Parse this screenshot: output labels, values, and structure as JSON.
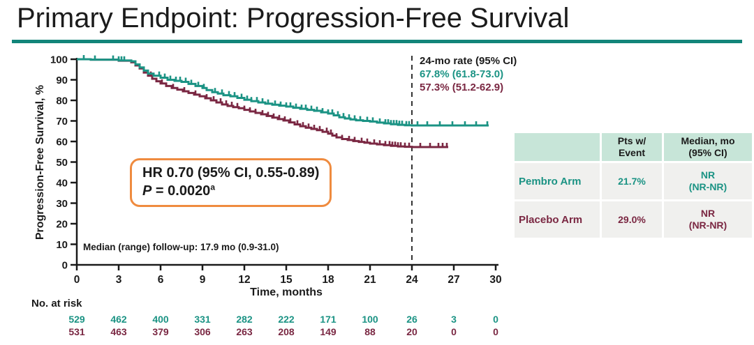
{
  "slide": {
    "title": "Primary Endpoint: Progression-Free Survival"
  },
  "colors": {
    "pembro_teal": "#1b9384",
    "placebo_maroon": "#7a2742",
    "title_underline": "#12857a",
    "hr_box_border": "#ef8b3f",
    "axis": "#1a1a1a",
    "reference_line": "#333333",
    "table_header_bg": "#c7e5d8",
    "table_row_bg": "#f0f0ee"
  },
  "chart_data": {
    "type": "line",
    "subtype": "kaplan-meier-step",
    "title": "",
    "xlabel": "Time, months",
    "ylabel": "Progression-Free Survival, %",
    "xlim": [
      0,
      30
    ],
    "ylim": [
      0,
      100
    ],
    "xticks": [
      0,
      3,
      6,
      9,
      12,
      15,
      18,
      21,
      24,
      27,
      30
    ],
    "yticks": [
      0,
      10,
      20,
      30,
      40,
      50,
      60,
      70,
      80,
      90,
      100
    ],
    "grid": false,
    "legend_position": "none",
    "reference_line": {
      "x": 24,
      "style": "dashed",
      "color": "#333333"
    },
    "series": [
      {
        "name": "Pembro Arm",
        "color": "#1b9384",
        "rate_24mo": 67.8,
        "rate_24mo_ci": "61.8-73.0",
        "steps": [
          [
            0,
            100
          ],
          [
            1,
            99.8
          ],
          [
            3,
            99.4
          ],
          [
            3.9,
            99
          ],
          [
            4.2,
            97.5
          ],
          [
            4.5,
            96
          ],
          [
            4.8,
            94.5
          ],
          [
            5.1,
            93
          ],
          [
            5.5,
            92
          ],
          [
            6,
            91
          ],
          [
            6.5,
            90
          ],
          [
            7,
            89.5
          ],
          [
            7.5,
            89
          ],
          [
            8,
            88
          ],
          [
            8.5,
            87
          ],
          [
            9,
            86
          ],
          [
            9.3,
            85
          ],
          [
            9.7,
            84
          ],
          [
            10.1,
            83.3
          ],
          [
            10.5,
            82.5
          ],
          [
            11,
            82
          ],
          [
            11.5,
            81.2
          ],
          [
            12,
            80.3
          ],
          [
            12.5,
            79.6
          ],
          [
            13,
            79
          ],
          [
            13.5,
            78.4
          ],
          [
            14,
            77.9
          ],
          [
            14.5,
            77.4
          ],
          [
            15,
            77
          ],
          [
            15.5,
            76.4
          ],
          [
            16,
            75.9
          ],
          [
            16.5,
            75.4
          ],
          [
            17,
            74.9
          ],
          [
            17.5,
            74.2
          ],
          [
            18,
            73.6
          ],
          [
            18.4,
            72.7
          ],
          [
            18.8,
            71.8
          ],
          [
            19.2,
            71.2
          ],
          [
            19.6,
            70.7
          ],
          [
            20,
            70.3
          ],
          [
            20.5,
            70
          ],
          [
            21,
            69.7
          ],
          [
            21.5,
            69.2
          ],
          [
            22,
            68.8
          ],
          [
            22.5,
            68.4
          ],
          [
            23,
            68.1
          ],
          [
            23.5,
            67.9
          ],
          [
            24,
            67.8
          ],
          [
            29.5,
            67.8
          ]
        ],
        "censor_marks": [
          0.5,
          1.3,
          2.6,
          3.0,
          3.2,
          3.4,
          5.9,
          6.3,
          6.7,
          7.1,
          7.4,
          7.8,
          8.2,
          8.7,
          9.1,
          9.9,
          10.4,
          10.9,
          11.3,
          11.8,
          12.2,
          12.5,
          12.9,
          13.3,
          13.7,
          14.2,
          14.6,
          15.0,
          15.3,
          15.7,
          16.1,
          16.4,
          16.8,
          17.2,
          17.6,
          18.0,
          18.3,
          18.7,
          19.1,
          19.5,
          19.9,
          20.3,
          20.8,
          21.2,
          21.7,
          22.1,
          22.3,
          22.5,
          22.7,
          22.9,
          23.1,
          23.3,
          23.6,
          23.8,
          24.4,
          25.1,
          26.0,
          26.9,
          27.8,
          28.6,
          29.4
        ]
      },
      {
        "name": "Placebo Arm",
        "color": "#7a2742",
        "rate_24mo": 57.3,
        "rate_24mo_ci": "51.2-62.9",
        "steps": [
          [
            0,
            100
          ],
          [
            1,
            99.8
          ],
          [
            3,
            99.3
          ],
          [
            3.9,
            98.5
          ],
          [
            4.2,
            97
          ],
          [
            4.5,
            95.5
          ],
          [
            4.8,
            93.5
          ],
          [
            5.1,
            92
          ],
          [
            5.4,
            90.5
          ],
          [
            5.7,
            89.3
          ],
          [
            6,
            88.2
          ],
          [
            6.4,
            87
          ],
          [
            6.8,
            86
          ],
          [
            7.2,
            85.2
          ],
          [
            7.6,
            84.4
          ],
          [
            8,
            83.6
          ],
          [
            8.4,
            82.8
          ],
          [
            8.8,
            82
          ],
          [
            9.2,
            81
          ],
          [
            9.6,
            80
          ],
          [
            10,
            79
          ],
          [
            10.4,
            78
          ],
          [
            10.8,
            77.3
          ],
          [
            11.2,
            76.7
          ],
          [
            11.6,
            76.2
          ],
          [
            12,
            75.4
          ],
          [
            12.4,
            74.6
          ],
          [
            12.8,
            73.9
          ],
          [
            13.2,
            73.2
          ],
          [
            13.6,
            72.4
          ],
          [
            14,
            71.6
          ],
          [
            14.4,
            70.9
          ],
          [
            14.8,
            70.2
          ],
          [
            15.2,
            69.3
          ],
          [
            15.6,
            68.3
          ],
          [
            16,
            67.4
          ],
          [
            16.4,
            66.7
          ],
          [
            16.8,
            66.1
          ],
          [
            17.2,
            65.5
          ],
          [
            17.6,
            64.7
          ],
          [
            18,
            63.8
          ],
          [
            18.3,
            62.9
          ],
          [
            18.6,
            62
          ],
          [
            19,
            61.2
          ],
          [
            19.4,
            60.7
          ],
          [
            19.8,
            60.2
          ],
          [
            20.2,
            59.8
          ],
          [
            20.6,
            59.4
          ],
          [
            21,
            59
          ],
          [
            21.5,
            58.6
          ],
          [
            22,
            58.2
          ],
          [
            22.5,
            57.9
          ],
          [
            23,
            57.6
          ],
          [
            23.5,
            57.4
          ],
          [
            24,
            57.3
          ],
          [
            26.6,
            57.3
          ]
        ],
        "censor_marks": [
          5.3,
          6.1,
          6.9,
          7.7,
          8.5,
          9.3,
          9.8,
          10.3,
          10.7,
          11.1,
          11.5,
          12.0,
          12.4,
          12.8,
          13.3,
          13.7,
          14.1,
          14.5,
          14.9,
          15.3,
          15.8,
          16.2,
          16.6,
          17.0,
          17.4,
          17.9,
          18.2,
          18.6,
          19.0,
          19.5,
          19.9,
          20.4,
          20.8,
          21.3,
          21.7,
          22.1,
          22.4,
          22.6,
          22.8,
          23.0,
          23.2,
          23.5,
          23.8,
          24.6,
          25.3,
          25.9,
          26.2,
          26.5
        ]
      }
    ],
    "annotations": {
      "rate_header": "24-mo rate (95% CI)",
      "rate_pembro": "67.8% (61.8-73.0)",
      "rate_placebo": "57.3% (51.2-62.9)",
      "hr_line": "HR 0.70 (95% CI, 0.55-0.89)",
      "p_prefix": "P",
      "p_value": " = 0.0020",
      "p_superscript": "a",
      "median_followup": "Median (range) follow-up: 17.9 mo (0.9-31.0)"
    },
    "risk_table": {
      "label": "No. at risk",
      "timepoints": [
        0,
        3,
        6,
        9,
        12,
        15,
        18,
        21,
        24,
        27,
        30
      ],
      "rows": [
        {
          "name": "Pembro Arm",
          "color": "#1b9384",
          "counts": [
            529,
            462,
            400,
            331,
            282,
            222,
            171,
            100,
            26,
            3,
            0
          ]
        },
        {
          "name": "Placebo Arm",
          "color": "#7a2742",
          "counts": [
            531,
            463,
            379,
            306,
            263,
            208,
            149,
            88,
            20,
            0,
            0
          ]
        }
      ]
    }
  },
  "summary_table": {
    "headers": [
      "",
      "Pts w/\nEvent",
      "Median, mo\n(95% CI)"
    ],
    "rows": [
      {
        "cells": [
          "Pembro Arm",
          "21.7%",
          "NR\n(NR-NR)"
        ]
      },
      {
        "cells": [
          "Placebo Arm",
          "29.0%",
          "NR\n(NR-NR)"
        ]
      }
    ]
  }
}
